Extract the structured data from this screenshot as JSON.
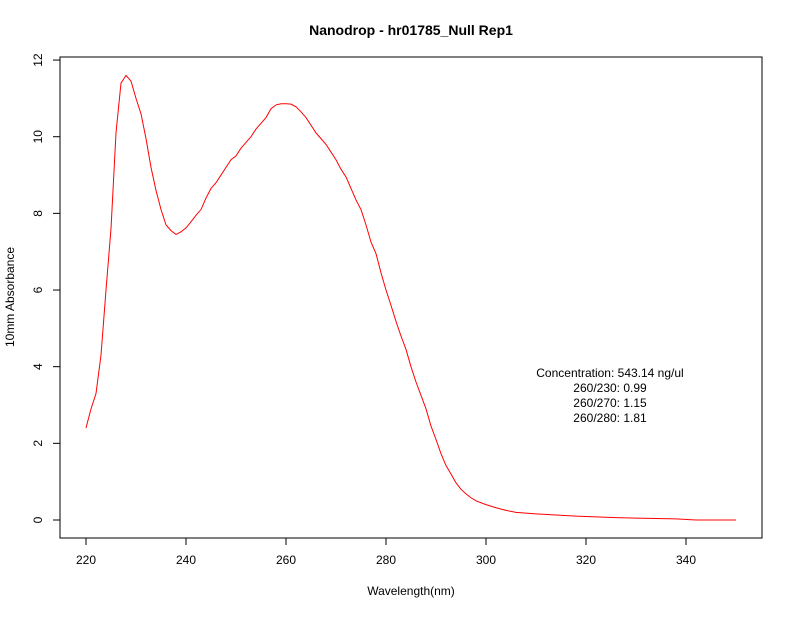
{
  "chart_data": {
    "type": "line",
    "title": "Nanodrop - hr01785_Null Rep1",
    "x_label": "Wavelength(nm)",
    "y_label": "10mm Absorbance",
    "annotations": [
      "Concentration: 543.14 ng/ul",
      "260/230: 0.99",
      "260/270: 1.15",
      "260/280: 1.81"
    ],
    "x": [
      220,
      221,
      222,
      223,
      224,
      225,
      226,
      227,
      228,
      229,
      230,
      231,
      232,
      233,
      234,
      235,
      236,
      237,
      238,
      239,
      240,
      241,
      242,
      243,
      244,
      245,
      246,
      247,
      248,
      249,
      250,
      251,
      252,
      253,
      254,
      255,
      256,
      257,
      258,
      259,
      260,
      261,
      262,
      263,
      264,
      265,
      266,
      267,
      268,
      269,
      270,
      271,
      272,
      273,
      274,
      275,
      276,
      277,
      278,
      279,
      280,
      281,
      282,
      283,
      284,
      285,
      286,
      287,
      288,
      289,
      290,
      291,
      292,
      293,
      294,
      295,
      296,
      297,
      298,
      299,
      300,
      302,
      304,
      306,
      308,
      310,
      314,
      318,
      322,
      326,
      330,
      334,
      338,
      342,
      346,
      350
    ],
    "series": [
      {
        "name": "absorbance",
        "color": "#ff0000",
        "values": [
          2.4,
          2.9,
          3.3,
          4.3,
          6.0,
          7.6,
          10.1,
          11.4,
          11.6,
          11.45,
          11.0,
          10.6,
          9.95,
          9.2,
          8.6,
          8.1,
          7.7,
          7.55,
          7.45,
          7.52,
          7.62,
          7.78,
          7.95,
          8.1,
          8.4,
          8.65,
          8.8,
          9.0,
          9.2,
          9.4,
          9.5,
          9.7,
          9.85,
          10.0,
          10.2,
          10.35,
          10.5,
          10.73,
          10.83,
          10.86,
          10.86,
          10.85,
          10.78,
          10.65,
          10.5,
          10.3,
          10.1,
          9.95,
          9.8,
          9.6,
          9.4,
          9.15,
          8.95,
          8.65,
          8.35,
          8.1,
          7.7,
          7.25,
          6.95,
          6.45,
          6.0,
          5.6,
          5.18,
          4.8,
          4.45,
          4.0,
          3.6,
          3.25,
          2.9,
          2.45,
          2.1,
          1.73,
          1.42,
          1.2,
          0.97,
          0.8,
          0.68,
          0.58,
          0.5,
          0.45,
          0.4,
          0.32,
          0.25,
          0.2,
          0.18,
          0.16,
          0.13,
          0.1,
          0.08,
          0.06,
          0.05,
          0.04,
          0.03,
          0.0,
          0.0,
          0.0
        ]
      }
    ],
    "xlim": [
      214.8,
      355.2
    ],
    "xticks": [
      220,
      240,
      260,
      280,
      300,
      320,
      340
    ],
    "ylim": [
      -0.47,
      12.08
    ],
    "yticks": [
      0,
      2,
      4,
      6,
      8,
      10,
      12
    ]
  }
}
